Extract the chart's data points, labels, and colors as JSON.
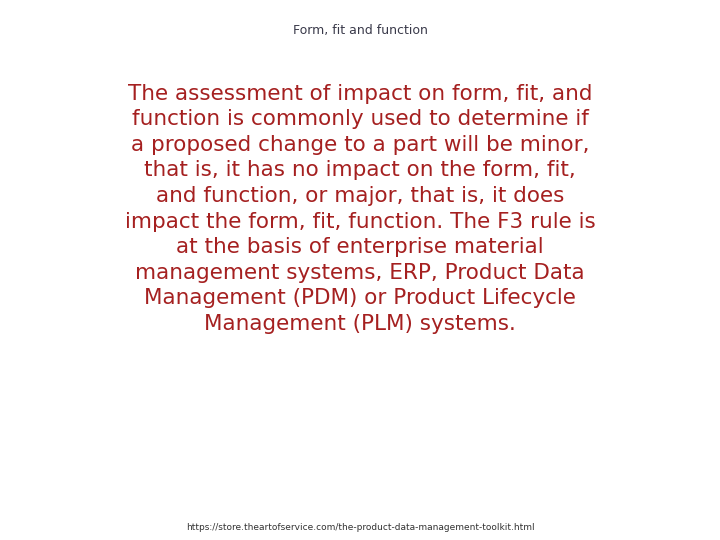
{
  "title": "Form, fit and function",
  "title_color": "#3a3a4a",
  "title_fontsize": 9,
  "body_text": "The assessment of impact on form, fit, and\nfunction is commonly used to determine if\na proposed change to a part will be minor,\nthat is, it has no impact on the form, fit,\nand function, or major, that is, it does\nimpact the form, fit, function. The F3 rule is\nat the basis of enterprise material\nmanagement systems, ERP, Product Data\nManagement (PDM) or Product Lifecycle\nManagement (PLM) systems.",
  "body_color": "#A52020",
  "body_fontsize": 15.5,
  "footer_text": "https://store.theartofservice.com/the-product-data-management-toolkit.html",
  "footer_color": "#333333",
  "footer_fontsize": 6.5,
  "background_color": "#ffffff",
  "fig_width": 7.2,
  "fig_height": 5.4
}
